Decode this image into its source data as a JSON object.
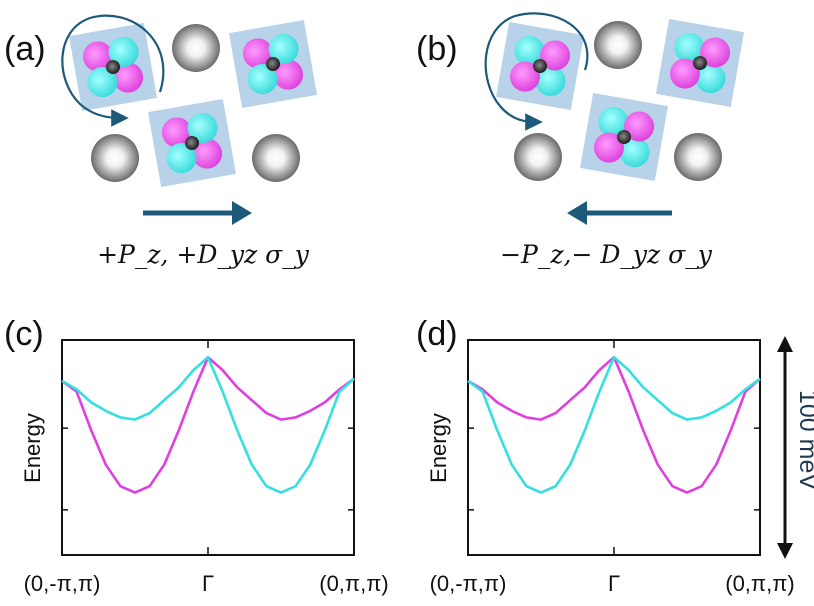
{
  "panels": {
    "a": {
      "label": "(a)",
      "caption": "+P_z, +D_yz σ_y",
      "arrow_direction": "right",
      "rotation_direction": "counterclockwise"
    },
    "b": {
      "label": "(b)",
      "caption": "−P_z,− D_yz σ_y",
      "arrow_direction": "left",
      "rotation_direction": "clockwise"
    },
    "c": {
      "label": "(c)"
    },
    "d": {
      "label": "(d)"
    }
  },
  "colors": {
    "magenta": "#e03fe0",
    "cyan": "#33e0e0",
    "arrow": "#1d5a7a",
    "tile": "#b8d2ea",
    "atom": "#9a9a9a"
  },
  "chart_data": [
    {
      "type": "line",
      "panel": "c",
      "ylabel": "Energy",
      "xticks": [
        "(0,-π,π)",
        "Γ",
        "(0,π,π)"
      ],
      "x": [
        -1,
        -0.9,
        -0.8,
        -0.7,
        -0.6,
        -0.5,
        -0.4,
        -0.3,
        -0.2,
        -0.1,
        0,
        0.1,
        0.2,
        0.3,
        0.4,
        0.5,
        0.6,
        0.7,
        0.8,
        0.9,
        1
      ],
      "xlim": [
        -1,
        1
      ],
      "ylim": [
        0,
        1
      ],
      "series": [
        {
          "color": "magenta",
          "values": [
            0.81,
            0.76,
            0.58,
            0.42,
            0.32,
            0.29,
            0.32,
            0.42,
            0.58,
            0.76,
            0.92,
            0.86,
            0.78,
            0.72,
            0.66,
            0.63,
            0.64,
            0.67,
            0.71,
            0.77,
            0.82
          ]
        },
        {
          "color": "cyan",
          "values": [
            0.81,
            0.77,
            0.71,
            0.67,
            0.64,
            0.63,
            0.66,
            0.72,
            0.78,
            0.86,
            0.92,
            0.76,
            0.58,
            0.42,
            0.32,
            0.29,
            0.32,
            0.42,
            0.58,
            0.76,
            0.82
          ]
        }
      ]
    },
    {
      "type": "line",
      "panel": "d",
      "ylabel": "Energy",
      "xticks": [
        "(0,-π,π)",
        "Γ",
        "(0,π,π)"
      ],
      "x": [
        -1,
        -0.9,
        -0.8,
        -0.7,
        -0.6,
        -0.5,
        -0.4,
        -0.3,
        -0.2,
        -0.1,
        0,
        0.1,
        0.2,
        0.3,
        0.4,
        0.5,
        0.6,
        0.7,
        0.8,
        0.9,
        1
      ],
      "xlim": [
        -1,
        1
      ],
      "ylim": [
        0,
        1
      ],
      "scale_bar": "100 meV",
      "series": [
        {
          "color": "magenta",
          "values": [
            0.81,
            0.77,
            0.71,
            0.67,
            0.64,
            0.63,
            0.66,
            0.72,
            0.78,
            0.86,
            0.92,
            0.76,
            0.58,
            0.42,
            0.32,
            0.29,
            0.32,
            0.42,
            0.58,
            0.76,
            0.82
          ]
        },
        {
          "color": "cyan",
          "values": [
            0.81,
            0.76,
            0.58,
            0.42,
            0.32,
            0.29,
            0.32,
            0.42,
            0.58,
            0.76,
            0.92,
            0.86,
            0.78,
            0.72,
            0.66,
            0.63,
            0.64,
            0.67,
            0.71,
            0.77,
            0.82
          ]
        }
      ]
    }
  ]
}
